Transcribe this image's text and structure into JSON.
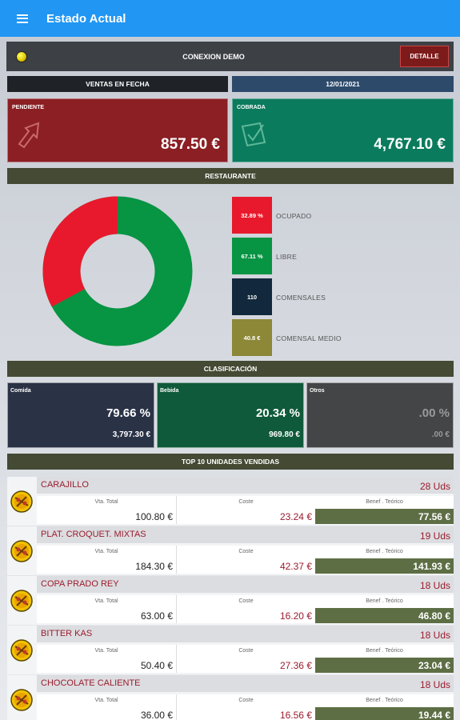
{
  "header": {
    "title": "Estado Actual"
  },
  "connection": {
    "title": "CONEXION DEMO",
    "detail_label": "DETALLE"
  },
  "sales": {
    "header_label": "VENTAS EN FECHA",
    "date": "12/01/2021",
    "pending": {
      "label": "PENDIENTE",
      "amount": "857.50 €",
      "color": "#8b1f24"
    },
    "collected": {
      "label": "COBRADA",
      "amount": "4,767.10 €",
      "color": "#0b7b5e"
    }
  },
  "restaurant": {
    "header_label": "RESTAURANTE",
    "occupancy": {
      "occupied_fraction": 0.3289,
      "occupied_color": "#e8192c",
      "free_color": "#079443"
    },
    "stats": [
      {
        "value": "32.89 %",
        "label": "OCUPADO",
        "color": "#e8192c"
      },
      {
        "value": "67.11 %",
        "label": "LIBRE",
        "color": "#079443"
      },
      {
        "value": "110",
        "label": "COMENSALES",
        "color": "#12293d"
      },
      {
        "value": "40.8 €",
        "label": "COMENSAL MEDIO",
        "color": "#8c8838"
      }
    ]
  },
  "classification": {
    "header_label": "CLASIFICACIÓN",
    "cards": [
      {
        "label": "Comida",
        "percent": "79.66 %",
        "amount": "3,797.30 €",
        "color": "#2a3246"
      },
      {
        "label": "Bebida",
        "percent": "20.34 %",
        "amount": "969.80 €",
        "color": "#0f5a3a"
      },
      {
        "label": "Otros",
        "percent": ".00 %",
        "amount": ".00 €",
        "color": "#444547"
      }
    ]
  },
  "top_products": {
    "header_label": "TOP 10 UNIDADES VENDIDAS",
    "col_total": "Vta. Total",
    "col_cost": "Coste",
    "col_benefit": "Benef . Teórico",
    "items": [
      {
        "name": "CARAJILLO",
        "units": "28 Uds",
        "total": "100.80 €",
        "cost": "23.24 €",
        "benefit": "77.56 €"
      },
      {
        "name": "PLAT. CROQUET. MIXTAS",
        "units": "19 Uds",
        "total": "184.30 €",
        "cost": "42.37 €",
        "benefit": "141.93 €"
      },
      {
        "name": "COPA PRADO REY",
        "units": "18 Uds",
        "total": "63.00 €",
        "cost": "16.20 €",
        "benefit": "46.80 €"
      },
      {
        "name": "BITTER KAS",
        "units": "18 Uds",
        "total": "50.40 €",
        "cost": "27.36 €",
        "benefit": "23.04 €"
      },
      {
        "name": "CHOCOLATE CALIENTE",
        "units": "18 Uds",
        "total": "36.00 €",
        "cost": "16.56 €",
        "benefit": "19.44 €"
      }
    ]
  },
  "colors": {
    "appbar": "#2196f3",
    "section_bar": "#444a33",
    "accent_red": "#9b1c2e"
  }
}
